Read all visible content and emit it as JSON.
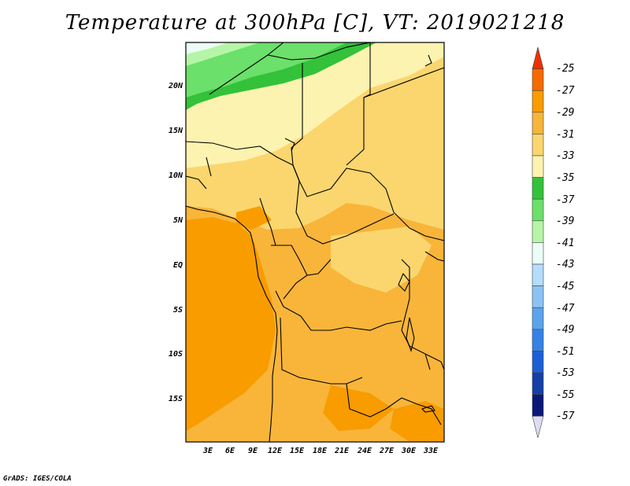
{
  "title": "Temperature at 300hPa [C], VT: 2019021218",
  "credit": "GrADS: IGES/COLA",
  "lat_labels": [
    "20N",
    "15N",
    "10N",
    "5N",
    "EQ",
    "5S",
    "10S",
    "15S"
  ],
  "lon_labels": [
    "3E",
    "6E",
    "9E",
    "12E",
    "15E",
    "18E",
    "21E",
    "24E",
    "27E",
    "30E",
    "33E"
  ],
  "colorbar": {
    "labels": [
      "-25",
      "-27",
      "-29",
      "-31",
      "-33",
      "-35",
      "-37",
      "-39",
      "-41",
      "-43",
      "-45",
      "-47",
      "-49",
      "-51",
      "-53",
      "-55",
      "-57"
    ],
    "colors": [
      "#f03000",
      "#f56a00",
      "#f89c00",
      "#f8b53a",
      "#fbd66e",
      "#fdf3b0",
      "#33c23a",
      "#6be06a",
      "#b6f5a8",
      "#ecfdf7",
      "#b4dcfb",
      "#8ac4f5",
      "#5aa4ee",
      "#3582e6",
      "#1c5fd5",
      "#1440a8",
      "#0a1878",
      "#dcdcf4"
    ]
  }
}
